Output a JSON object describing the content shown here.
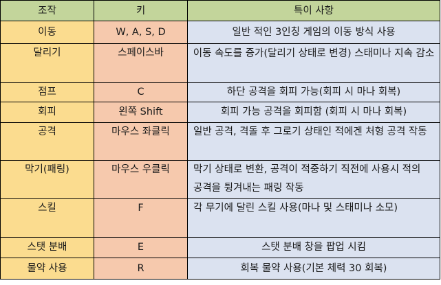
{
  "table": {
    "headers": {
      "action": "조작",
      "key": "키",
      "description": "특이 사항"
    },
    "rows": [
      {
        "action": "이동",
        "key": "W, A, S, D",
        "description": "일반 적인 3인칭 게임의 이동 방식 사용"
      },
      {
        "action": "달리기",
        "key": "스페이스바",
        "description": "이동 속도를 증가(달리기 상태로 변경) 스태미나 지속 감소"
      },
      {
        "action": "점프",
        "key": "C",
        "description": "하단 공격을 회피 가능(회피 시 마나 회복)"
      },
      {
        "action": "회피",
        "key": "왼쪽 Shift",
        "description": "회피 가능 공격을 회피함 (회피 시 마나 회복)"
      },
      {
        "action": "공격",
        "key": "마우스 좌클릭",
        "description": "일반 공격, 격돌 후 그로기 상태인 적에겐 처형 공격 작동"
      },
      {
        "action": "막기(패링)",
        "key": "마우스 우클릭",
        "description": "막기 상태로 변환, 공격이 적중하기 직전에 사용시 적의 공격을 튕겨내는 패링 작동"
      },
      {
        "action": "스킬",
        "key": "F",
        "description": "각 무기에 달린 스킬 사용(마나 및 스태미나 소모)"
      },
      {
        "action": "스탯 분배",
        "key": "E",
        "description": "스탯 분배 창을 팝업 시킴"
      },
      {
        "action": "물약 사용",
        "key": "R",
        "description": "회복 물약 사용(기본 체력 30 회복)"
      }
    ]
  },
  "colors": {
    "header_bg": "#c3d59b",
    "action_bg": "#fbdc8f",
    "key_bg": "#f6c9ad",
    "description_bg": "#dbe2f0",
    "border": "#000000"
  }
}
